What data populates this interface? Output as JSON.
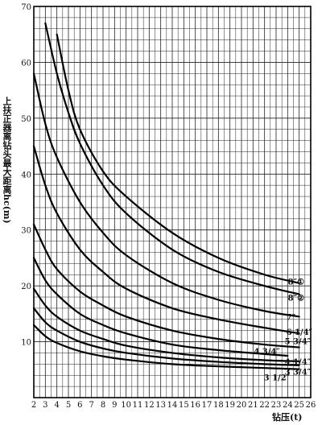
{
  "chart_data": {
    "type": "line",
    "ylabel": "上扶正器离钻头最大距离hc(m)",
    "xlabel": "钻压(t)",
    "xlim": [
      2,
      26
    ],
    "ylim": [
      0,
      70
    ],
    "x_ticks": [
      2,
      3,
      4,
      5,
      6,
      7,
      8,
      9,
      10,
      11,
      12,
      13,
      14,
      15,
      16,
      17,
      18,
      19,
      20,
      21,
      22,
      23,
      24,
      25,
      26
    ],
    "y_ticks": [
      10,
      20,
      30,
      40,
      50,
      60,
      70
    ],
    "grid": true,
    "series": [
      {
        "name": "8″①",
        "x": [
          4,
          5,
          6,
          8,
          10,
          14,
          18,
          22,
          25
        ],
        "y": [
          65,
          55,
          48,
          40.5,
          36,
          29.5,
          25,
          22,
          20.5
        ]
      },
      {
        "name": "8″②",
        "x": [
          3,
          4,
          5,
          6,
          8,
          10,
          14,
          18,
          22,
          25
        ],
        "y": [
          67,
          58,
          51,
          45.5,
          38,
          33,
          26.5,
          22.5,
          20,
          18.5
        ]
      },
      {
        "name": "7″",
        "x": [
          2,
          3,
          4,
          6,
          8,
          10,
          14,
          18,
          22,
          25
        ],
        "y": [
          58,
          49,
          43,
          35,
          29.5,
          25.5,
          20.5,
          17.5,
          15.5,
          14.5
        ]
      },
      {
        "name": "6 1/4″",
        "x": [
          2,
          3,
          4,
          6,
          8,
          10,
          14,
          18,
          22,
          25
        ],
        "y": [
          45,
          38,
          33,
          26.5,
          22.5,
          19.5,
          16,
          14,
          12.5,
          11.5
        ]
      },
      {
        "name": "5 3/4″",
        "x": [
          2,
          3,
          4,
          6,
          8,
          10,
          14,
          18,
          22,
          25
        ],
        "y": [
          31,
          26.5,
          23,
          19,
          16.5,
          14.5,
          12,
          10.5,
          9.5,
          9
        ]
      },
      {
        "name": "4 3/4″",
        "x": [
          2,
          3,
          4,
          6,
          8,
          10,
          14,
          18,
          22,
          24
        ],
        "y": [
          25,
          21,
          18.5,
          15,
          13,
          11.5,
          9.5,
          8.5,
          7.8,
          7.5
        ]
      },
      {
        "name": "4 1/4″",
        "x": [
          2,
          3,
          4,
          6,
          8,
          10,
          14,
          18,
          22,
          25
        ],
        "y": [
          19.5,
          16.5,
          14.5,
          12,
          10.5,
          9.3,
          8,
          7.2,
          6.7,
          6.5
        ]
      },
      {
        "name": "3 3/4″",
        "x": [
          2,
          3,
          4,
          6,
          8,
          10,
          14,
          18,
          22,
          25
        ],
        "y": [
          16,
          13.5,
          12,
          10,
          8.8,
          8,
          7,
          6.4,
          6,
          5.8
        ]
      },
      {
        "name": "3 1/2″",
        "x": [
          2,
          3,
          4,
          6,
          8,
          10,
          14,
          18,
          22,
          25
        ],
        "y": [
          13,
          11,
          9.8,
          8.3,
          7.4,
          6.8,
          6,
          5.6,
          5.3,
          5.1
        ]
      }
    ],
    "curve_labels": [
      {
        "text": "8″①",
        "at_series": 0
      },
      {
        "text": "8″②",
        "at_series": 1
      },
      {
        "text": "7″",
        "at_series": 2
      },
      {
        "text": "6 1/4″",
        "at_series": 3
      },
      {
        "text": "5 3/4″",
        "at_series": 4
      },
      {
        "text": "4 3/4″",
        "at_series": 5
      },
      {
        "text": "4 1/4″",
        "at_series": 6
      },
      {
        "text": "3 3/4″",
        "at_series": 7
      },
      {
        "text": "3 1/2″",
        "at_series": 8
      }
    ]
  }
}
